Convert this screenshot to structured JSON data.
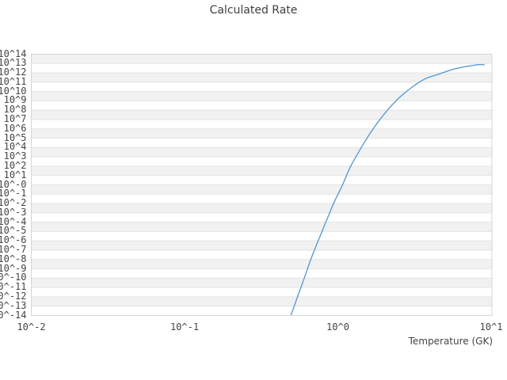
{
  "title": "Calculated Rate",
  "colors": {
    "curve": "#5b9bd5",
    "stripe": "#f1f1f2",
    "gridline": "#e3e3e3",
    "plot_border": "#d5d5d5",
    "text": "#444444",
    "background": "#ffffff"
  },
  "chart_data": {
    "type": "line",
    "title": "Calculated Rate",
    "xlabel": "Temperature (GK)",
    "ylabel": "",
    "x_scale": "log10",
    "y_scale": "log10",
    "xlim_exp": [
      -2,
      1.0103
    ],
    "ylim_exp": [
      -14,
      14
    ],
    "grid": "horizontal-decade-stripes",
    "legend": "none",
    "x_tick_labels": [
      "10^-2",
      "10^-1",
      "10^0",
      "10^1"
    ],
    "x_tick_exponents": [
      -2,
      -1,
      0,
      1
    ],
    "y_tick_labels": [
      "10^14",
      "10^13",
      "10^12",
      "10^11",
      "10^10",
      "10^9",
      "10^8",
      "10^7",
      "10^6",
      "10^5",
      "10^4",
      "10^3",
      "10^2",
      "10^1",
      "10^-0",
      "10^-1",
      "10^-2",
      "10^-3",
      "10^-4",
      "10^-5",
      "10^-6",
      "10^-7",
      "10^-8",
      "10^-9",
      "10^-10",
      "10^-11",
      "10^-12",
      "10^-13",
      "10^-14"
    ],
    "series": [
      {
        "name": "Calculated Rate",
        "comment": "points are [log10(Temperature GK), log10(rate)] read off the plot; curve enters bottom axis at T~0.5 GK and peaks near 10^13 at T~8.5 GK",
        "points_log10": [
          [
            -0.303,
            -14.0
          ],
          [
            -0.262,
            -12.1
          ],
          [
            -0.22,
            -10.2
          ],
          [
            -0.18,
            -8.3
          ],
          [
            -0.14,
            -6.6
          ],
          [
            -0.1,
            -5.0
          ],
          [
            -0.06,
            -3.4
          ],
          [
            -0.02,
            -1.85
          ],
          [
            0.03,
            -0.15
          ],
          [
            0.085,
            1.9
          ],
          [
            0.15,
            3.8
          ],
          [
            0.22,
            5.65
          ],
          [
            0.3,
            7.45
          ],
          [
            0.39,
            9.1
          ],
          [
            0.48,
            10.35
          ],
          [
            0.57,
            11.3
          ],
          [
            0.66,
            11.82
          ],
          [
            0.75,
            12.32
          ],
          [
            0.83,
            12.62
          ],
          [
            0.89,
            12.78
          ],
          [
            0.93,
            12.85
          ],
          [
            0.959,
            12.84
          ]
        ]
      }
    ]
  }
}
